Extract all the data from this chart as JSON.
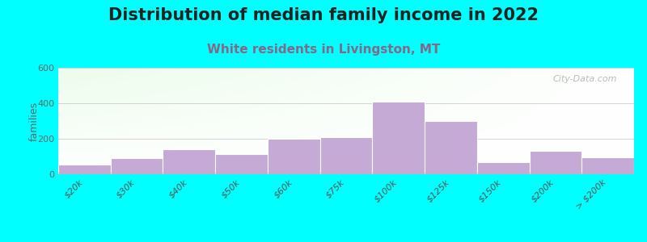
{
  "title": "Distribution of median family income in 2022",
  "subtitle": "White residents in Livingston, MT",
  "ylabel": "families",
  "background_color": "#00ffff",
  "bar_color": "#c4aad4",
  "bar_edge_color": "#ffffff",
  "categories": [
    "$20k",
    "$30k",
    "$40k",
    "$50k",
    "$60k",
    "$75k",
    "$100k",
    "$125k",
    "$150k",
    "$200k",
    "> $200k"
  ],
  "values": [
    55,
    90,
    140,
    115,
    200,
    210,
    410,
    300,
    70,
    130,
    95
  ],
  "ylim": [
    0,
    600
  ],
  "yticks": [
    0,
    200,
    400,
    600
  ],
  "title_fontsize": 15,
  "subtitle_fontsize": 11,
  "subtitle_color": "#886688",
  "watermark_text": "City-Data.com",
  "plot_bg_color_top_left": "#ddeedd",
  "plot_bg_color_right": "#f8fff8",
  "plot_bg_color_bottom": "#ffffff"
}
